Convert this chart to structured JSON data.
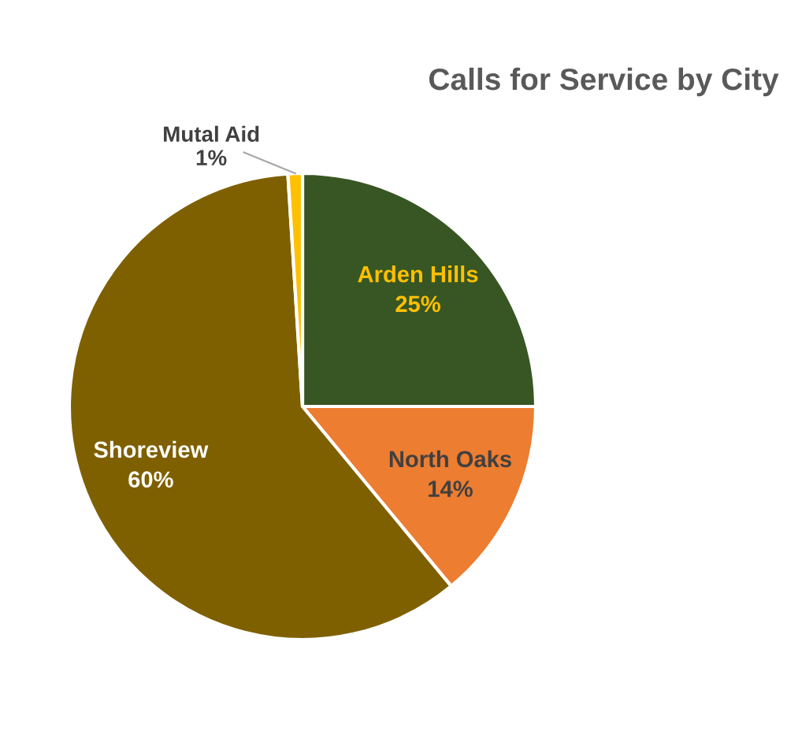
{
  "chart_data": {
    "type": "pie",
    "title": "Calls for Service by City",
    "categories": [
      "Arden Hills",
      "North Oaks",
      "Shoreview",
      "Mutal Aid"
    ],
    "values": [
      25,
      14,
      60,
      1
    ],
    "value_labels": [
      "25%",
      "14%",
      "60%",
      "1%"
    ],
    "colors": [
      "#375623",
      "#ed7d31",
      "#7f6000",
      "#ffc000"
    ],
    "legend": false
  }
}
